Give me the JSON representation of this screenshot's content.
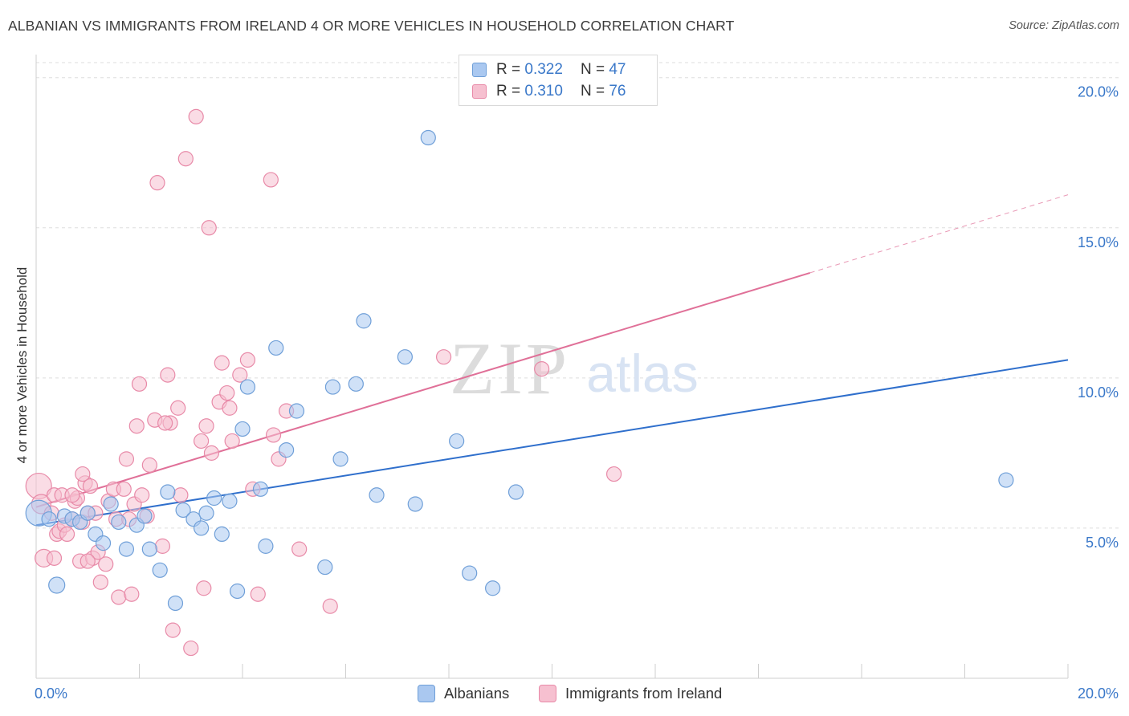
{
  "header": {
    "title": "ALBANIAN VS IMMIGRANTS FROM IRELAND 4 OR MORE VEHICLES IN HOUSEHOLD CORRELATION CHART",
    "source": "Source: ZipAtlas.com"
  },
  "watermark": {
    "zip": "ZIP",
    "atlas": "atlas"
  },
  "legend": {
    "rows": [
      {
        "r_label": "R = ",
        "r_value": "0.322",
        "n_label": "N = ",
        "n_value": "47"
      },
      {
        "r_label": "R = ",
        "r_value": "0.310",
        "n_label": "N = ",
        "n_value": "76"
      }
    ]
  },
  "bottom_legend": {
    "albanians": "Albanians",
    "ireland": "Immigrants from Ireland"
  },
  "colors": {
    "blue_fill": "#aac8f0",
    "blue_stroke": "#6f9fd8",
    "blue_line": "#2f6fcc",
    "pink_fill": "#f6c0d0",
    "pink_stroke": "#e88aa8",
    "pink_line": "#e07098",
    "tick_label": "#3a78c9",
    "grid": "#dddddd"
  },
  "chart_data": {
    "type": "scatter",
    "title": "ALBANIAN VS IMMIGRANTS FROM IRELAND 4 OR MORE VEHICLES IN HOUSEHOLD CORRELATION CHART",
    "xlabel": "",
    "ylabel": "4 or more Vehicles in Household",
    "xlim": [
      0,
      20
    ],
    "ylim": [
      0,
      20.5
    ],
    "x_tick_labels": [
      "0.0%",
      "20.0%"
    ],
    "y_ticks": [
      5,
      10,
      15,
      20
    ],
    "y_tick_labels": [
      "5.0%",
      "10.0%",
      "15.0%",
      "20.0%"
    ],
    "grid": true,
    "legend_position": "top-center",
    "series": [
      {
        "name": "Albanians",
        "r": 0.322,
        "n": 47,
        "trend": {
          "x": [
            0,
            20
          ],
          "y": [
            5.1,
            10.6
          ],
          "dashed_extension": false
        },
        "points": [
          {
            "x": 0.05,
            "y": 5.5,
            "s": 16
          },
          {
            "x": 0.25,
            "y": 5.3,
            "s": 9
          },
          {
            "x": 0.4,
            "y": 3.1,
            "s": 10
          },
          {
            "x": 0.55,
            "y": 5.4,
            "s": 9
          },
          {
            "x": 0.7,
            "y": 5.3,
            "s": 9
          },
          {
            "x": 0.85,
            "y": 5.2,
            "s": 9
          },
          {
            "x": 1.0,
            "y": 5.5,
            "s": 9
          },
          {
            "x": 1.15,
            "y": 4.8,
            "s": 9
          },
          {
            "x": 1.3,
            "y": 4.5,
            "s": 9
          },
          {
            "x": 1.45,
            "y": 5.8,
            "s": 9
          },
          {
            "x": 1.6,
            "y": 5.2,
            "s": 9
          },
          {
            "x": 1.75,
            "y": 4.3,
            "s": 9
          },
          {
            "x": 1.95,
            "y": 5.1,
            "s": 9
          },
          {
            "x": 2.1,
            "y": 5.4,
            "s": 9
          },
          {
            "x": 2.2,
            "y": 4.3,
            "s": 9
          },
          {
            "x": 2.4,
            "y": 3.6,
            "s": 9
          },
          {
            "x": 2.55,
            "y": 6.2,
            "s": 9
          },
          {
            "x": 2.7,
            "y": 2.5,
            "s": 9
          },
          {
            "x": 2.85,
            "y": 5.6,
            "s": 9
          },
          {
            "x": 3.05,
            "y": 5.3,
            "s": 9
          },
          {
            "x": 3.2,
            "y": 5.0,
            "s": 9
          },
          {
            "x": 3.3,
            "y": 5.5,
            "s": 9
          },
          {
            "x": 3.45,
            "y": 6.0,
            "s": 9
          },
          {
            "x": 3.6,
            "y": 4.8,
            "s": 9
          },
          {
            "x": 3.75,
            "y": 5.9,
            "s": 9
          },
          {
            "x": 3.9,
            "y": 2.9,
            "s": 9
          },
          {
            "x": 4.0,
            "y": 8.3,
            "s": 9
          },
          {
            "x": 4.1,
            "y": 9.7,
            "s": 9
          },
          {
            "x": 4.35,
            "y": 6.3,
            "s": 9
          },
          {
            "x": 4.45,
            "y": 4.4,
            "s": 9
          },
          {
            "x": 4.65,
            "y": 11.0,
            "s": 9
          },
          {
            "x": 4.85,
            "y": 7.6,
            "s": 9
          },
          {
            "x": 5.05,
            "y": 8.9,
            "s": 9
          },
          {
            "x": 5.6,
            "y": 3.7,
            "s": 9
          },
          {
            "x": 5.75,
            "y": 9.7,
            "s": 9
          },
          {
            "x": 5.9,
            "y": 7.3,
            "s": 9
          },
          {
            "x": 6.2,
            "y": 9.8,
            "s": 9
          },
          {
            "x": 6.35,
            "y": 11.9,
            "s": 9
          },
          {
            "x": 6.6,
            "y": 6.1,
            "s": 9
          },
          {
            "x": 7.15,
            "y": 10.7,
            "s": 9
          },
          {
            "x": 7.35,
            "y": 5.8,
            "s": 9
          },
          {
            "x": 7.6,
            "y": 18.0,
            "s": 9
          },
          {
            "x": 8.15,
            "y": 7.9,
            "s": 9
          },
          {
            "x": 8.4,
            "y": 3.5,
            "s": 9
          },
          {
            "x": 8.85,
            "y": 3.0,
            "s": 9
          },
          {
            "x": 9.3,
            "y": 6.2,
            "s": 9
          },
          {
            "x": 18.8,
            "y": 6.6,
            "s": 9
          }
        ]
      },
      {
        "name": "Immigrants from Ireland",
        "r": 0.31,
        "n": 76,
        "trend": {
          "x": [
            0,
            15
          ],
          "y": [
            5.7,
            13.5
          ],
          "dashed_extension": true,
          "dashed_to": [
            20,
            16.1
          ]
        },
        "points": [
          {
            "x": 0.05,
            "y": 6.4,
            "s": 16
          },
          {
            "x": 0.1,
            "y": 5.8,
            "s": 12
          },
          {
            "x": 0.15,
            "y": 4.0,
            "s": 11
          },
          {
            "x": 0.3,
            "y": 5.5,
            "s": 9
          },
          {
            "x": 0.35,
            "y": 6.1,
            "s": 9
          },
          {
            "x": 0.4,
            "y": 4.8,
            "s": 9
          },
          {
            "x": 0.45,
            "y": 4.9,
            "s": 9
          },
          {
            "x": 0.5,
            "y": 6.1,
            "s": 9
          },
          {
            "x": 0.55,
            "y": 5.1,
            "s": 9
          },
          {
            "x": 0.6,
            "y": 4.8,
            "s": 9
          },
          {
            "x": 0.7,
            "y": 5.3,
            "s": 9
          },
          {
            "x": 0.75,
            "y": 5.9,
            "s": 9
          },
          {
            "x": 0.8,
            "y": 6.0,
            "s": 9
          },
          {
            "x": 0.85,
            "y": 3.9,
            "s": 9
          },
          {
            "x": 0.9,
            "y": 5.2,
            "s": 9
          },
          {
            "x": 0.95,
            "y": 6.5,
            "s": 9
          },
          {
            "x": 0.9,
            "y": 6.8,
            "s": 9
          },
          {
            "x": 1.0,
            "y": 5.5,
            "s": 9
          },
          {
            "x": 1.05,
            "y": 6.4,
            "s": 9
          },
          {
            "x": 1.1,
            "y": 4.0,
            "s": 9
          },
          {
            "x": 1.15,
            "y": 5.5,
            "s": 9
          },
          {
            "x": 1.2,
            "y": 4.2,
            "s": 9
          },
          {
            "x": 1.25,
            "y": 3.2,
            "s": 9
          },
          {
            "x": 1.35,
            "y": 3.8,
            "s": 9
          },
          {
            "x": 1.4,
            "y": 5.9,
            "s": 9
          },
          {
            "x": 1.5,
            "y": 6.3,
            "s": 9
          },
          {
            "x": 1.55,
            "y": 5.3,
            "s": 9
          },
          {
            "x": 1.6,
            "y": 2.7,
            "s": 9
          },
          {
            "x": 1.7,
            "y": 6.3,
            "s": 9
          },
          {
            "x": 1.75,
            "y": 7.3,
            "s": 9
          },
          {
            "x": 1.8,
            "y": 5.3,
            "s": 9
          },
          {
            "x": 1.85,
            "y": 2.8,
            "s": 9
          },
          {
            "x": 1.9,
            "y": 5.8,
            "s": 9
          },
          {
            "x": 1.95,
            "y": 8.4,
            "s": 9
          },
          {
            "x": 2.0,
            "y": 9.8,
            "s": 9
          },
          {
            "x": 2.05,
            "y": 6.1,
            "s": 9
          },
          {
            "x": 2.15,
            "y": 5.4,
            "s": 9
          },
          {
            "x": 2.2,
            "y": 7.1,
            "s": 9
          },
          {
            "x": 2.3,
            "y": 8.6,
            "s": 9
          },
          {
            "x": 2.35,
            "y": 16.5,
            "s": 9
          },
          {
            "x": 2.45,
            "y": 4.4,
            "s": 9
          },
          {
            "x": 2.55,
            "y": 10.1,
            "s": 9
          },
          {
            "x": 2.6,
            "y": 8.5,
            "s": 9
          },
          {
            "x": 2.65,
            "y": 1.6,
            "s": 9
          },
          {
            "x": 2.75,
            "y": 9.0,
            "s": 9
          },
          {
            "x": 2.8,
            "y": 6.1,
            "s": 9
          },
          {
            "x": 2.9,
            "y": 17.3,
            "s": 9
          },
          {
            "x": 3.0,
            "y": 1.0,
            "s": 9
          },
          {
            "x": 3.1,
            "y": 18.7,
            "s": 9
          },
          {
            "x": 3.2,
            "y": 7.9,
            "s": 9
          },
          {
            "x": 3.25,
            "y": 3.0,
            "s": 9
          },
          {
            "x": 3.3,
            "y": 8.4,
            "s": 9
          },
          {
            "x": 3.35,
            "y": 15.0,
            "s": 9
          },
          {
            "x": 3.4,
            "y": 7.5,
            "s": 9
          },
          {
            "x": 3.55,
            "y": 9.2,
            "s": 9
          },
          {
            "x": 3.6,
            "y": 10.5,
            "s": 9
          },
          {
            "x": 3.7,
            "y": 9.5,
            "s": 9
          },
          {
            "x": 3.75,
            "y": 9.0,
            "s": 9
          },
          {
            "x": 3.8,
            "y": 7.9,
            "s": 9
          },
          {
            "x": 3.95,
            "y": 10.1,
            "s": 9
          },
          {
            "x": 4.1,
            "y": 10.6,
            "s": 9
          },
          {
            "x": 4.2,
            "y": 6.3,
            "s": 9
          },
          {
            "x": 4.3,
            "y": 2.8,
            "s": 9
          },
          {
            "x": 4.55,
            "y": 16.6,
            "s": 9
          },
          {
            "x": 4.6,
            "y": 8.1,
            "s": 9
          },
          {
            "x": 4.7,
            "y": 7.3,
            "s": 9
          },
          {
            "x": 4.85,
            "y": 8.9,
            "s": 9
          },
          {
            "x": 5.1,
            "y": 4.3,
            "s": 9
          },
          {
            "x": 5.7,
            "y": 2.4,
            "s": 9
          },
          {
            "x": 7.9,
            "y": 10.7,
            "s": 9
          },
          {
            "x": 9.8,
            "y": 10.3,
            "s": 9
          },
          {
            "x": 11.2,
            "y": 6.8,
            "s": 9
          },
          {
            "x": 0.35,
            "y": 4.0,
            "s": 9
          },
          {
            "x": 1.0,
            "y": 3.9,
            "s": 9
          },
          {
            "x": 2.5,
            "y": 8.5,
            "s": 9
          },
          {
            "x": 0.7,
            "y": 6.1,
            "s": 9
          }
        ]
      }
    ]
  }
}
